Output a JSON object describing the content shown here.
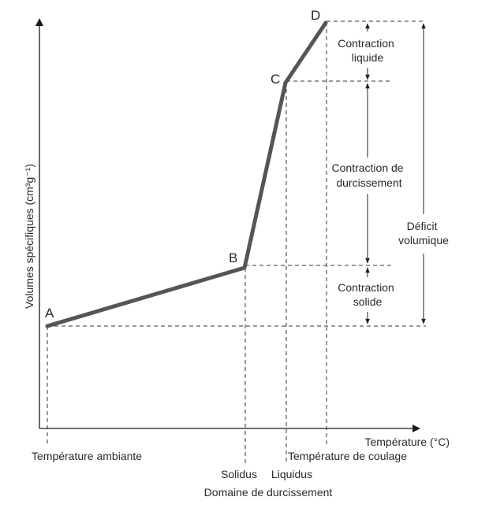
{
  "axes": {
    "y_label": "Volumes spécifiques (cm³g⁻¹)",
    "x_label": "Température (°C)"
  },
  "points": {
    "a": "A",
    "b": "B",
    "c": "C",
    "d": "D"
  },
  "x_labels": {
    "ambient": "Température ambiante",
    "solidus": "Solidus",
    "liquidus": "Liquidus",
    "casting": "Température de coulage",
    "range": "Domaine de durcissement"
  },
  "annotations": {
    "liquid_contraction": [
      "Contraction",
      "liquide"
    ],
    "hardening_contraction": [
      "Contraction de",
      "durcissement"
    ],
    "solid_contraction": [
      "Contraction",
      "solide"
    ],
    "volume_deficit": [
      "Déficit",
      "volumique"
    ]
  },
  "colors": {
    "curve": "#555555",
    "axis": "#1a1a1a",
    "text": "#2a2a2a"
  }
}
